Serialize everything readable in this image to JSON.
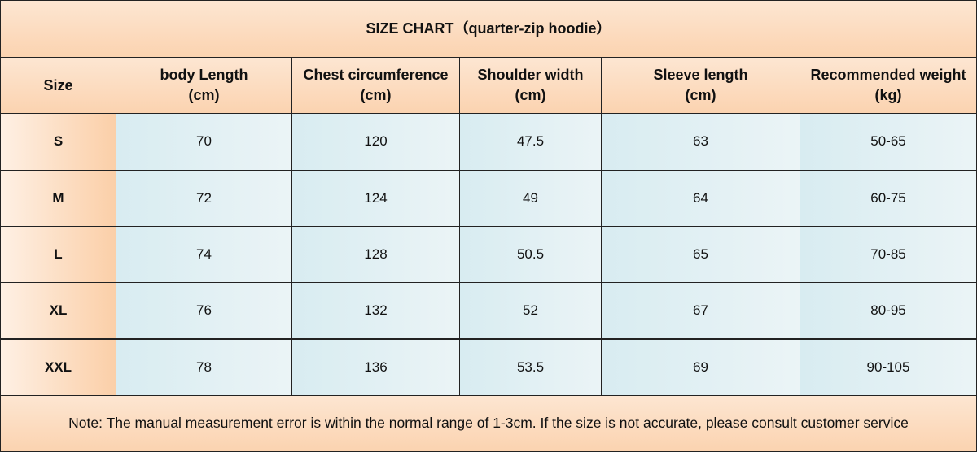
{
  "title": "SIZE CHART（quarter-zip hoodie）",
  "table": {
    "header": [
      {
        "name": "Size"
      },
      {
        "name": "body Length",
        "unit": "(cm)"
      },
      {
        "name": "Chest circumference",
        "unit": "(cm)"
      },
      {
        "name": "Shoulder width",
        "unit": "(cm)"
      },
      {
        "name": "Sleeve length",
        "unit": "(cm)"
      },
      {
        "name": "Recommended weight",
        "unit": "(kg)"
      }
    ],
    "rows": [
      [
        "S",
        "70",
        "120",
        "47.5",
        "63",
        "50-65"
      ],
      [
        "M",
        "72",
        "124",
        "49",
        "64",
        "60-75"
      ],
      [
        "L",
        "74",
        "128",
        "50.5",
        "65",
        "70-85"
      ],
      [
        "XL",
        "76",
        "132",
        "52",
        "67",
        "80-95"
      ],
      [
        "XXL",
        "78",
        "136",
        "53.5",
        "69",
        "90-105"
      ]
    ]
  },
  "note": "Note: The manual measurement error is within the normal range of 1-3cm. If the size is not accurate, please consult customer service"
}
